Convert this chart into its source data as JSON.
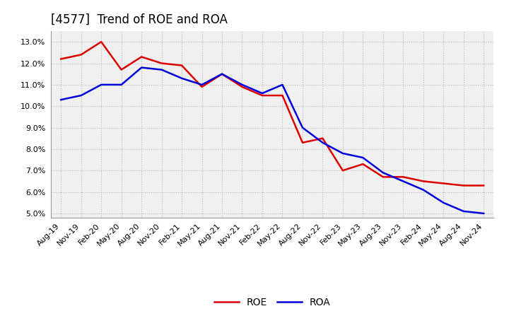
{
  "title": "[4577]  Trend of ROE and ROA",
  "background_color": "#ffffff",
  "plot_background_color": "#f0f0f0",
  "grid_color": "#bbbbbb",
  "x_labels": [
    "Aug-19",
    "Nov-19",
    "Feb-20",
    "May-20",
    "Aug-20",
    "Nov-20",
    "Feb-21",
    "May-21",
    "Aug-21",
    "Nov-21",
    "Feb-22",
    "May-22",
    "Aug-22",
    "Nov-22",
    "Feb-23",
    "May-23",
    "Aug-23",
    "Nov-23",
    "Feb-24",
    "May-24",
    "Aug-24",
    "Nov-24"
  ],
  "roe": [
    12.2,
    12.4,
    13.0,
    11.7,
    12.3,
    12.0,
    11.9,
    10.9,
    11.5,
    10.9,
    10.5,
    10.5,
    8.3,
    8.5,
    7.0,
    7.3,
    6.7,
    6.7,
    6.5,
    6.4,
    6.3,
    6.3
  ],
  "roa": [
    10.3,
    10.5,
    11.0,
    11.0,
    11.8,
    11.7,
    11.3,
    11.0,
    11.5,
    11.0,
    10.6,
    11.0,
    9.0,
    8.3,
    7.8,
    7.6,
    6.9,
    6.5,
    6.1,
    5.5,
    5.1,
    5.0
  ],
  "roe_color": "#dd0000",
  "roa_color": "#0000dd",
  "ylim": [
    4.8,
    13.5
  ],
  "yticks": [
    5.0,
    6.0,
    7.0,
    8.0,
    9.0,
    10.0,
    11.0,
    12.0,
    13.0
  ],
  "line_width": 1.8,
  "title_fontsize": 12,
  "tick_fontsize": 8,
  "legend_fontsize": 10
}
